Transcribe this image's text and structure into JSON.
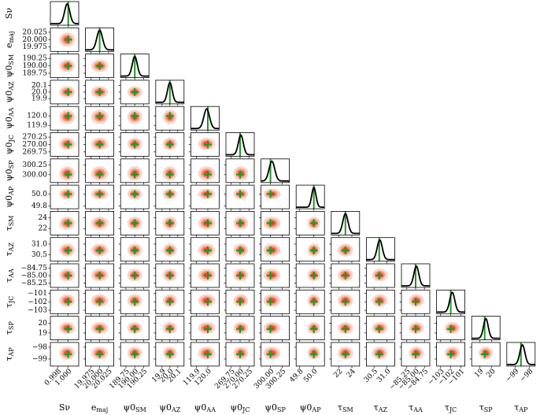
{
  "chart_data": {
    "type": "corner",
    "blob_colors": [
      "#fbd3c8",
      "#f7937b",
      "#ef4a2f"
    ],
    "truth_color": "#1f9a1f",
    "line_color": "#000000",
    "params": [
      {
        "symbol": "Sν",
        "sub": null,
        "lim": [
          0.9966,
          1.002
        ],
        "ticks": [
          0.998,
          {
            "value": 1.0,
            "label": "1.000"
          }
        ],
        "truth": 1.0,
        "mean": 0.9998,
        "sd": 0.0005
      },
      {
        "symbol": "e",
        "sub": "maj",
        "lim": [
          19.96,
          20.04
        ],
        "ticks": [
          19.975,
          {
            "value": 20.0,
            "label": "20.000"
          },
          20.025
        ],
        "truth": 20.0,
        "mean": 20.0,
        "sd": 0.008
      },
      {
        "symbol": "ψ0",
        "sub": "SM",
        "lim": [
          189.6,
          190.4
        ],
        "ticks": [
          189.75,
          {
            "value": 190.0,
            "label": "190.00"
          },
          190.25
        ],
        "truth": 190.0,
        "mean": 190.0,
        "sd": 0.07
      },
      {
        "symbol": "ψ0",
        "sub": "AZ",
        "lim": [
          19.82,
          20.18
        ],
        "ticks": [
          19.9,
          {
            "value": 20.0,
            "label": "20.0"
          },
          20.1
        ],
        "truth": 20.0,
        "mean": 20.0,
        "sd": 0.03
      },
      {
        "symbol": "ψ0",
        "sub": "AA",
        "lim": [
          119.85,
          120.1
        ],
        "ticks": [
          119.9,
          {
            "value": 120.0,
            "label": "120.0"
          }
        ],
        "truth": 120.0,
        "mean": 119.99,
        "sd": 0.025
      },
      {
        "symbol": "ψ0",
        "sub": "JC",
        "lim": [
          269.6,
          270.4
        ],
        "ticks": [
          269.75,
          {
            "value": 270.0,
            "label": "270.00"
          },
          270.25
        ],
        "truth": 270.0,
        "mean": 270.02,
        "sd": 0.07
      },
      {
        "symbol": "ψ0",
        "sub": "SP",
        "lim": [
          299.8,
          300.4
        ],
        "ticks": [
          {
            "value": 300.0,
            "label": "300.00"
          },
          300.25
        ],
        "truth": 300.0,
        "mean": 300.03,
        "sd": 0.06
      },
      {
        "symbol": "ψ0",
        "sub": "AP",
        "lim": [
          49.75,
          50.15
        ],
        "ticks": [
          49.8,
          {
            "value": 50.0,
            "label": "50.0"
          }
        ],
        "truth": 50.0,
        "mean": 50.0,
        "sd": 0.03
      },
      {
        "symbol": "τ",
        "sub": "SM",
        "lim": [
          20.8,
          25.2
        ],
        "ticks": [
          22,
          24
        ],
        "truth": 23,
        "mean": 23,
        "sd": 0.4
      },
      {
        "symbol": "τ",
        "sub": "AZ",
        "lim": [
          30.2,
          31.3
        ],
        "ticks": [
          30.5,
          {
            "value": 31.0,
            "label": "31.0"
          }
        ],
        "truth": 30.7,
        "mean": 30.72,
        "sd": 0.1
      },
      {
        "symbol": "τ",
        "sub": "AA",
        "lim": [
          -85.4,
          -84.6
        ],
        "ticks": [
          {
            "value": -85.25,
            "label": "−85.25"
          },
          {
            "value": -85.0,
            "label": "−85.00"
          },
          {
            "value": -84.75,
            "label": "−84.75"
          }
        ],
        "truth": -85.0,
        "mean": -84.98,
        "sd": 0.07
      },
      {
        "symbol": "τ",
        "sub": "JC",
        "lim": [
          -103.4,
          -100.6
        ],
        "ticks": [
          {
            "value": -103,
            "label": "−103"
          },
          {
            "value": -102,
            "label": "−102"
          },
          {
            "value": -101,
            "label": "−101"
          }
        ],
        "truth": -102,
        "mean": -101.85,
        "sd": 0.25
      },
      {
        "symbol": "τ",
        "sub": "SP",
        "lim": [
          18.3,
          20.7
        ],
        "ticks": [
          19,
          20
        ],
        "truth": 19.4,
        "mean": 19.5,
        "sd": 0.2
      },
      {
        "symbol": "τ",
        "sub": "AP",
        "lim": [
          -99.6,
          -97.6
        ],
        "ticks": [
          {
            "value": -99,
            "label": "−99"
          },
          {
            "value": -98,
            "label": "−98"
          }
        ],
        "truth": -98.6,
        "mean": -98.5,
        "sd": 0.18
      }
    ]
  }
}
